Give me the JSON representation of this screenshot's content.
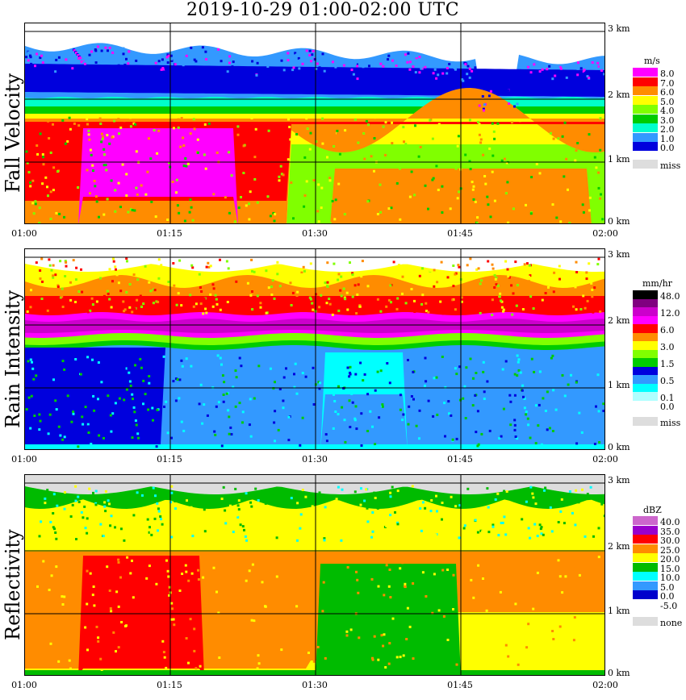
{
  "title": "2019-10-29   01:00-02:00 UTC",
  "chart_data": [
    {
      "type": "heatmap",
      "title": "Fall Velocity",
      "x_ticks": [
        "01:00",
        "01:15",
        "01:30",
        "01:45",
        "02:00"
      ],
      "y_ticks": [
        "0 km",
        "1 km",
        "2 km",
        "3 km"
      ],
      "units": "m/s",
      "legend": [
        {
          "label": "8.0",
          "color": "#ff00ff"
        },
        {
          "label": "7.0",
          "color": "#ff0000"
        },
        {
          "label": "6.0",
          "color": "#ff8c00"
        },
        {
          "label": "5.0",
          "color": "#ffff00"
        },
        {
          "label": "4.0",
          "color": "#80ff00"
        },
        {
          "label": "3.0",
          "color": "#00cc00"
        },
        {
          "label": "2.0",
          "color": "#00ffcc"
        },
        {
          "label": "1.0",
          "color": "#3399ff"
        },
        {
          "label": "0.0",
          "color": "#0000dd"
        },
        {
          "label": "miss",
          "color": "#dddddd"
        }
      ]
    },
    {
      "type": "heatmap",
      "title": "Rain Intensity",
      "x_ticks": [
        "01:00",
        "01:15",
        "01:30",
        "01:45",
        "02:00"
      ],
      "y_ticks": [
        "0 km",
        "1 km",
        "2 km",
        "3 km"
      ],
      "units": "mm/hr",
      "legend": [
        {
          "label": "48.0",
          "color": "#000000"
        },
        {
          "label": "",
          "color": "#800080"
        },
        {
          "label": "12.0",
          "color": "#cc00cc"
        },
        {
          "label": "",
          "color": "#ff00ff"
        },
        {
          "label": "6.0",
          "color": "#ff0000"
        },
        {
          "label": "",
          "color": "#ff8c00"
        },
        {
          "label": "3.0",
          "color": "#ffff00"
        },
        {
          "label": "",
          "color": "#80ff00"
        },
        {
          "label": "1.5",
          "color": "#00cc00"
        },
        {
          "label": "",
          "color": "#0000dd"
        },
        {
          "label": "0.5",
          "color": "#3399ff"
        },
        {
          "label": "",
          "color": "#00ffff"
        },
        {
          "label": "0.1",
          "color": "#b0ffff"
        },
        {
          "label": "0.0",
          "color": "#ffffff"
        },
        {
          "label": "miss",
          "color": "#dddddd"
        }
      ]
    },
    {
      "type": "heatmap",
      "title": "Reflectivity",
      "x_ticks": [
        "01:00",
        "01:15",
        "01:30",
        "01:45",
        "02:00"
      ],
      "y_ticks": [
        "0 km",
        "1 km",
        "2 km",
        "3 km"
      ],
      "units": "dBZ",
      "legend": [
        {
          "label": "40.0",
          "color": "#cc66cc"
        },
        {
          "label": "35.0",
          "color": "#9900cc"
        },
        {
          "label": "30.0",
          "color": "#ff0000"
        },
        {
          "label": "25.0",
          "color": "#ff8c00"
        },
        {
          "label": "20.0",
          "color": "#ffff00"
        },
        {
          "label": "15.0",
          "color": "#00bb00"
        },
        {
          "label": "10.0",
          "color": "#00ffff"
        },
        {
          "label": "5.0",
          "color": "#3399ff"
        },
        {
          "label": "0.0",
          "color": "#0000cc"
        },
        {
          "label": "-5.0",
          "color": "#ffffff"
        },
        {
          "label": "none",
          "color": "#dddddd"
        }
      ]
    }
  ]
}
